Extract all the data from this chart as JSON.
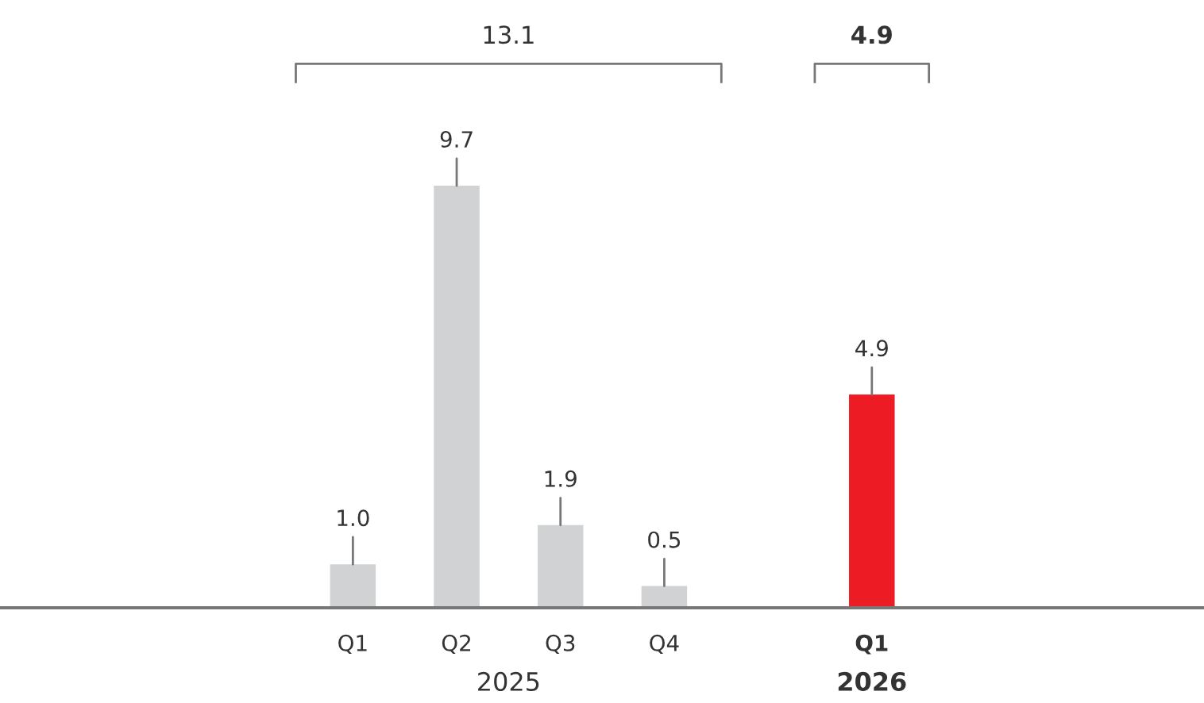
{
  "chart_data": {
    "type": "bar",
    "categories": [
      "Q1",
      "Q2",
      "Q3",
      "Q4",
      null,
      "Q1"
    ],
    "values": [
      1.0,
      9.7,
      1.9,
      0.5,
      null,
      4.9
    ],
    "colors": [
      "#d1d2d4",
      "#d1d2d4",
      "#d1d2d4",
      "#d1d2d4",
      null,
      "#ed1c24"
    ],
    "value_labels": [
      "1.0",
      "9.7",
      "1.9",
      "0.5",
      null,
      "4.9"
    ],
    "annotations": [
      "13.1",
      "4.9",
      "2025",
      "2026"
    ]
  }
}
